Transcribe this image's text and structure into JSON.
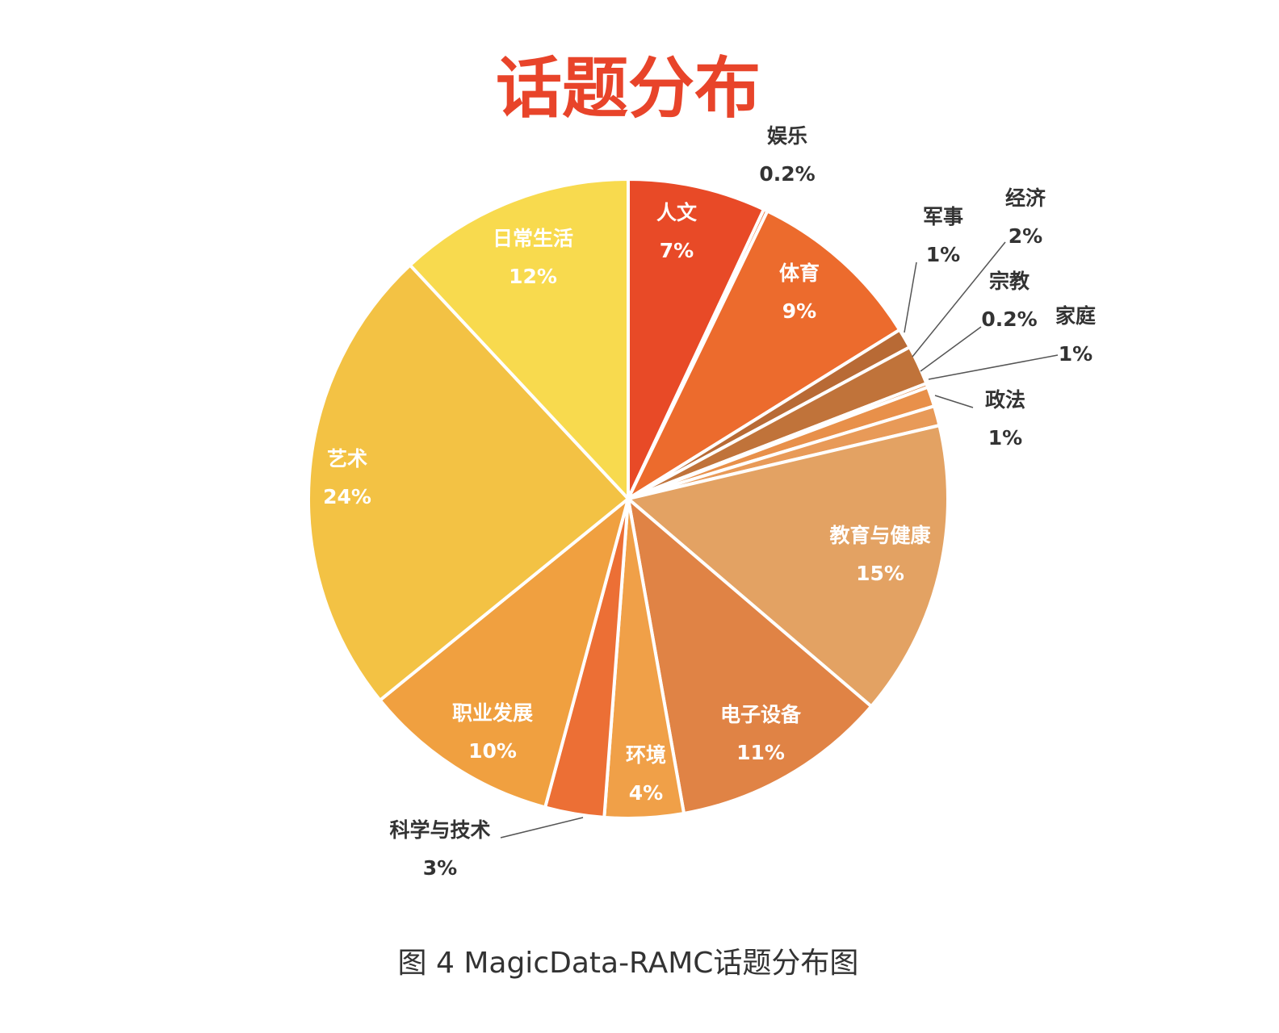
{
  "chart_data": {
    "type": "pie",
    "title": "话题分布",
    "caption": "图 4 MagicData-RAMC话题分布图",
    "categories": [
      "人文",
      "娱乐",
      "体育",
      "军事",
      "经济",
      "宗教",
      "家庭",
      "政法",
      "教育与健康",
      "电子设备",
      "环境",
      "科学与技术",
      "职业发展",
      "艺术",
      "日常生活"
    ],
    "values": [
      7,
      0.2,
      9,
      1,
      2,
      0.2,
      1,
      1,
      15,
      11,
      4,
      3,
      10,
      24,
      12
    ],
    "value_labels": [
      "7%",
      "0.2%",
      "9%",
      "1%",
      "2%",
      "0.2%",
      "1%",
      "1%",
      "15%",
      "11%",
      "4%",
      "3%",
      "10%",
      "24%",
      "12%"
    ],
    "colors": [
      "#e84a27",
      "#ed6f34",
      "#ec6b2d",
      "#b86a35",
      "#c0733a",
      "#e08a4a",
      "#e8904a",
      "#e89a58",
      "#e3a263",
      "#e08345",
      "#f0a048",
      "#ec6f35",
      "#f0a040",
      "#f3c244",
      "#f8da4e"
    ]
  }
}
